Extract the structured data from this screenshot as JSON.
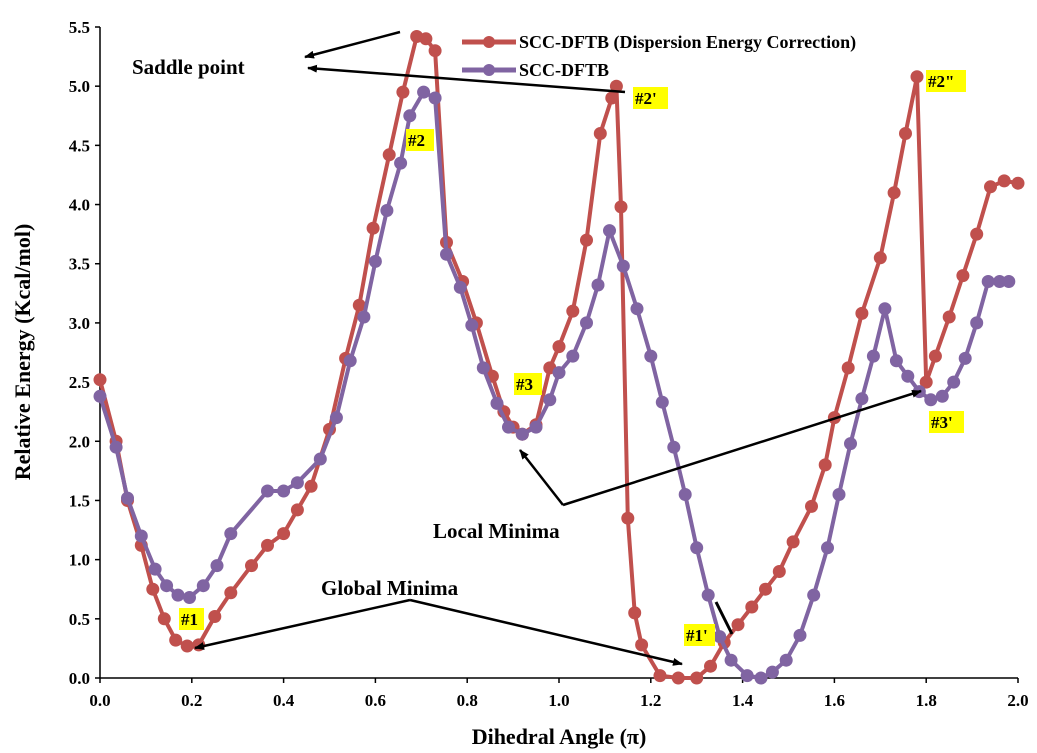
{
  "chart_data": {
    "type": "line",
    "title": "",
    "xlabel": "Dihedral Angle (π)",
    "ylabel": "Relative Energy (Kcal/mol)",
    "xlim": [
      0.0,
      2.0
    ],
    "ylim": [
      0.0,
      5.5
    ],
    "x_ticks": [
      "0.0",
      "0.2",
      "0.4",
      "0.6",
      "0.8",
      "1.0",
      "1.2",
      "1.4",
      "1.6",
      "1.8",
      "2.0"
    ],
    "y_ticks": [
      "0.0",
      "0.5",
      "1.0",
      "1.5",
      "2.0",
      "2.5",
      "3.0",
      "3.5",
      "4.0",
      "4.5",
      "5.0",
      "5.5"
    ],
    "grid": false,
    "legend_position": "top-right",
    "series": [
      {
        "name": "SCC-DFTB (Dispersion Energy Correction)",
        "color": "#c0504d",
        "x": [
          0.0,
          0.035,
          0.06,
          0.09,
          0.115,
          0.14,
          0.165,
          0.19,
          0.215,
          0.25,
          0.285,
          0.33,
          0.365,
          0.4,
          0.43,
          0.46,
          0.5,
          0.535,
          0.565,
          0.595,
          0.63,
          0.66,
          0.69,
          0.71,
          0.73,
          0.755,
          0.79,
          0.82,
          0.855,
          0.88,
          0.9,
          0.92,
          0.95,
          0.98,
          1.0,
          1.03,
          1.06,
          1.09,
          1.115,
          1.125,
          1.135,
          1.15,
          1.165,
          1.18,
          1.22,
          1.26,
          1.3,
          1.33,
          1.36,
          1.39,
          1.42,
          1.45,
          1.48,
          1.51,
          1.55,
          1.58,
          1.6,
          1.63,
          1.66,
          1.7,
          1.73,
          1.755,
          1.78,
          1.8,
          1.82,
          1.85,
          1.88,
          1.91,
          1.94,
          1.97,
          2.0
        ],
        "y": [
          2.52,
          2.0,
          1.5,
          1.12,
          0.75,
          0.5,
          0.32,
          0.27,
          0.28,
          0.52,
          0.72,
          0.95,
          1.12,
          1.22,
          1.42,
          1.62,
          2.1,
          2.7,
          3.15,
          3.8,
          4.42,
          4.95,
          5.42,
          5.4,
          5.3,
          3.68,
          3.35,
          3.0,
          2.55,
          2.25,
          2.12,
          2.06,
          2.14,
          2.62,
          2.8,
          3.1,
          3.7,
          4.6,
          4.9,
          5.0,
          3.98,
          1.35,
          0.55,
          0.28,
          0.02,
          0.0,
          0.0,
          0.1,
          0.3,
          0.45,
          0.6,
          0.75,
          0.9,
          1.15,
          1.45,
          1.8,
          2.2,
          2.62,
          3.08,
          3.55,
          4.1,
          4.6,
          5.08,
          2.5,
          2.72,
          3.05,
          3.4,
          3.75,
          4.15,
          4.2,
          4.18
        ]
      },
      {
        "name": "SCC-DFTB",
        "color": "#8064a2",
        "x": [
          0.0,
          0.035,
          0.06,
          0.09,
          0.12,
          0.145,
          0.17,
          0.195,
          0.225,
          0.255,
          0.285,
          0.365,
          0.4,
          0.43,
          0.48,
          0.515,
          0.545,
          0.575,
          0.6,
          0.625,
          0.655,
          0.675,
          0.705,
          0.73,
          0.755,
          0.785,
          0.81,
          0.835,
          0.865,
          0.89,
          0.92,
          0.95,
          0.98,
          1.0,
          1.03,
          1.06,
          1.085,
          1.11,
          1.14,
          1.17,
          1.2,
          1.225,
          1.25,
          1.275,
          1.3,
          1.325,
          1.35,
          1.375,
          1.41,
          1.44,
          1.465,
          1.495,
          1.525,
          1.555,
          1.585,
          1.61,
          1.635,
          1.66,
          1.685,
          1.71,
          1.735,
          1.76,
          1.785,
          1.81,
          1.835,
          1.86,
          1.885,
          1.91,
          1.935,
          1.96,
          1.98
        ],
        "y": [
          2.38,
          1.95,
          1.52,
          1.2,
          0.92,
          0.78,
          0.7,
          0.68,
          0.78,
          0.95,
          1.22,
          1.58,
          1.58,
          1.65,
          1.85,
          2.2,
          2.68,
          3.05,
          3.52,
          3.95,
          4.35,
          4.75,
          4.95,
          4.9,
          3.58,
          3.3,
          2.98,
          2.62,
          2.32,
          2.12,
          2.06,
          2.12,
          2.35,
          2.58,
          2.72,
          3.0,
          3.32,
          3.78,
          3.48,
          3.12,
          2.72,
          2.33,
          1.95,
          1.55,
          1.1,
          0.7,
          0.35,
          0.15,
          0.02,
          0.0,
          0.05,
          0.15,
          0.36,
          0.7,
          1.1,
          1.55,
          1.98,
          2.36,
          2.72,
          3.12,
          2.68,
          2.55,
          2.42,
          2.35,
          2.38,
          2.5,
          2.7,
          3.0,
          3.35,
          3.35,
          3.35
        ]
      }
    ],
    "annotations": [
      {
        "text": "Saddle point"
      },
      {
        "text": "Local Minima"
      },
      {
        "text": "Global Minima"
      },
      {
        "text": "#1"
      },
      {
        "text": "#2"
      },
      {
        "text": "#3"
      },
      {
        "text": "#1'"
      },
      {
        "text": "#2'"
      },
      {
        "text": "#3'"
      },
      {
        "text": "#2\""
      }
    ]
  }
}
